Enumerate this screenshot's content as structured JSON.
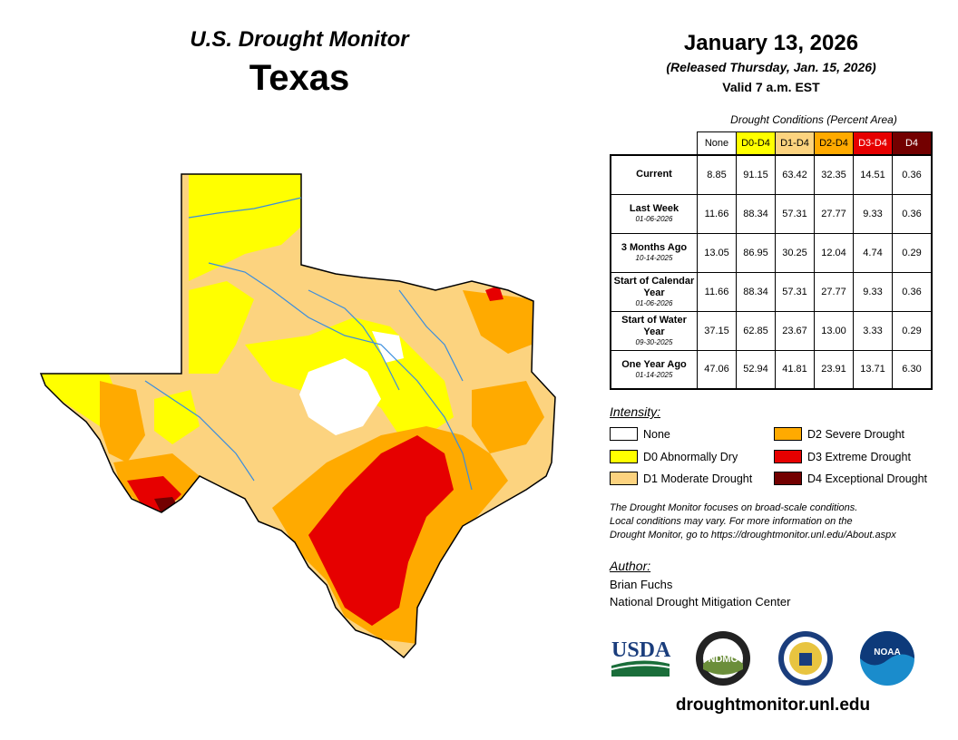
{
  "header": {
    "title": "U.S. Drought Monitor",
    "state": "Texas"
  },
  "date": {
    "main": "January 13, 2026",
    "released": "(Released Thursday, Jan. 15, 2026)",
    "valid": "Valid 7 a.m. EST"
  },
  "table": {
    "caption": "Drought Conditions (Percent Area)",
    "columns": [
      "None",
      "D0-D4",
      "D1-D4",
      "D2-D4",
      "D3-D4",
      "D4"
    ],
    "column_colors": [
      "#ffffff",
      "#ffff00",
      "#fcd37f",
      "#ffaa00",
      "#e60000",
      "#730000"
    ],
    "rows": [
      {
        "label": "Current",
        "date": "",
        "values": [
          "8.85",
          "91.15",
          "63.42",
          "32.35",
          "14.51",
          "0.36"
        ]
      },
      {
        "label": "Last Week",
        "date": "01-06-2026",
        "values": [
          "11.66",
          "88.34",
          "57.31",
          "27.77",
          "9.33",
          "0.36"
        ]
      },
      {
        "label": "3 Months Ago",
        "date": "10-14-2025",
        "values": [
          "13.05",
          "86.95",
          "30.25",
          "12.04",
          "4.74",
          "0.29"
        ]
      },
      {
        "label": "Start of Calendar Year",
        "date": "01-06-2026",
        "values": [
          "11.66",
          "88.34",
          "57.31",
          "27.77",
          "9.33",
          "0.36"
        ]
      },
      {
        "label": "Start of Water Year",
        "date": "09-30-2025",
        "values": [
          "37.15",
          "62.85",
          "23.67",
          "13.00",
          "3.33",
          "0.29"
        ]
      },
      {
        "label": "One Year Ago",
        "date": "01-14-2025",
        "values": [
          "47.06",
          "52.94",
          "41.81",
          "23.91",
          "13.71",
          "6.30"
        ]
      }
    ]
  },
  "legend": {
    "title": "Intensity:",
    "items": [
      {
        "label": "None",
        "color": "#ffffff"
      },
      {
        "label": "D0 Abnormally Dry",
        "color": "#ffff00"
      },
      {
        "label": "D1 Moderate Drought",
        "color": "#fcd37f"
      },
      {
        "label": "D2 Severe Drought",
        "color": "#ffaa00"
      },
      {
        "label": "D3 Extreme Drought",
        "color": "#e60000"
      },
      {
        "label": "D4 Exceptional Drought",
        "color": "#730000"
      }
    ]
  },
  "note": {
    "line1": "The Drought Monitor focuses on broad-scale conditions.",
    "line2": "Local conditions may vary. For more information on the",
    "line3": "Drought Monitor, go to https://droughtmonitor.unl.edu/About.aspx"
  },
  "author": {
    "label": "Author:",
    "name": "Brian Fuchs",
    "org": "National Drought Mitigation Center"
  },
  "logos": {
    "usda": "USDA",
    "ndmc": "NDMC",
    "noaa": "NOAA",
    "doc": "commerce-seal"
  },
  "website": "droughtmonitor.unl.edu"
}
